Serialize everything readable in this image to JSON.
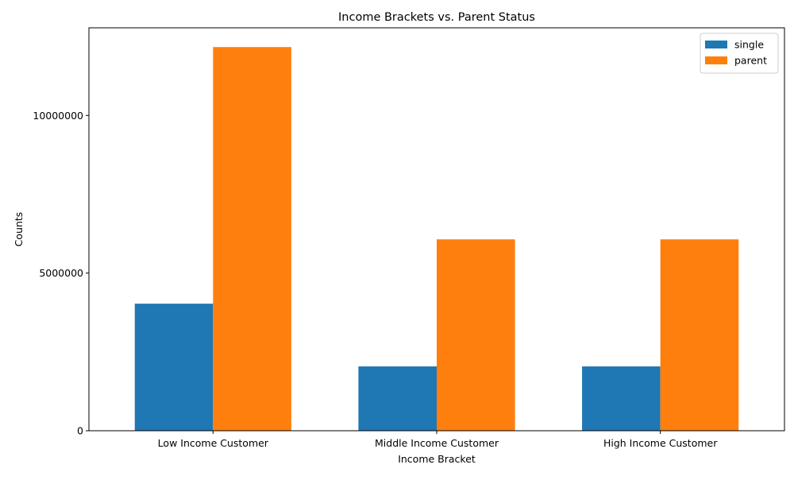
{
  "chart_data": {
    "type": "bar",
    "title": "Income Brackets vs. Parent Status",
    "xlabel": "Income Bracket",
    "ylabel": "Counts",
    "categories": [
      "Low Income Customer",
      "Middle Income Customer",
      "High Income Customer"
    ],
    "series": [
      {
        "name": "single",
        "color": "#1f77b4",
        "values": [
          4030000,
          2040000,
          2040000
        ]
      },
      {
        "name": "parent",
        "color": "#ff7f0e",
        "values": [
          12170000,
          6070000,
          6070000
        ]
      }
    ],
    "ylim": [
      0,
      12780000
    ],
    "yticks": [
      0,
      5000000,
      10000000
    ],
    "ytick_labels": [
      "0",
      "5000000",
      "10000000"
    ],
    "grid": false,
    "legend_position": "top-right"
  }
}
